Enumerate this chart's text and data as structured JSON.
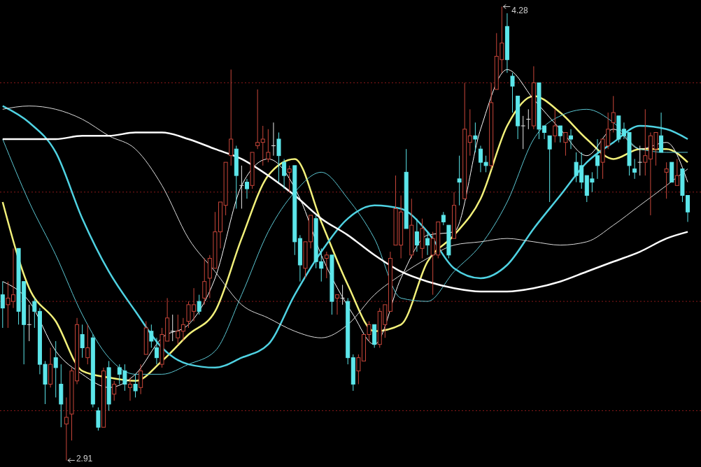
{
  "chart_data": {
    "type": "candlestick",
    "categories": [
      null,
      null,
      null,
      null,
      null,
      null,
      null,
      null,
      null,
      null,
      null,
      null,
      null,
      null,
      null,
      null,
      null,
      null,
      null,
      null,
      null,
      null,
      null,
      null,
      null,
      null,
      null,
      null,
      null,
      null,
      null,
      null,
      null,
      null,
      null,
      null,
      null,
      null,
      null,
      null,
      null,
      null,
      null,
      null,
      null,
      null,
      null,
      null,
      null,
      null,
      null,
      null,
      null,
      null,
      null,
      null,
      null,
      null,
      null,
      null,
      null,
      null,
      null,
      null,
      null,
      null,
      null,
      null,
      null,
      null,
      null,
      null,
      null,
      null,
      null,
      null,
      null,
      null,
      null,
      null,
      null,
      null,
      null,
      null,
      null,
      null,
      null,
      null,
      null,
      null,
      null,
      null,
      null,
      null,
      null,
      null,
      null,
      null,
      null,
      null,
      null,
      null,
      null,
      null,
      null,
      null,
      null,
      null,
      null,
      null,
      null,
      null,
      null,
      null,
      null,
      null,
      null,
      null,
      null,
      null,
      null,
      null,
      null,
      null,
      null,
      null,
      null,
      null,
      null,
      null
    ],
    "ohlc": [
      [
        3.41,
        3.45,
        3.31,
        3.37
      ],
      [
        3.38,
        3.45,
        3.31,
        3.4
      ],
      [
        3.39,
        3.55,
        3.37,
        3.41
      ],
      [
        3.55,
        3.55,
        3.32,
        3.36
      ],
      [
        3.45,
        3.45,
        3.2,
        3.32
      ],
      [
        3.32,
        3.38,
        3.27,
        3.32
      ],
      [
        3.39,
        3.4,
        3.31,
        3.36
      ],
      [
        3.36,
        3.37,
        3.17,
        3.2
      ],
      [
        3.2,
        3.21,
        3.08,
        3.14
      ],
      [
        3.14,
        3.25,
        3.13,
        3.2
      ],
      [
        3.22,
        3.27,
        3.1,
        3.19
      ],
      [
        3.14,
        3.2,
        3.01,
        3.08
      ],
      [
        3.02,
        3.1,
        2.91,
        3.04
      ],
      [
        3.05,
        3.19,
        2.97,
        3.18
      ],
      [
        3.15,
        3.34,
        3.14,
        3.32
      ],
      [
        3.29,
        3.32,
        3.22,
        3.25
      ],
      [
        3.22,
        3.32,
        3.2,
        3.25
      ],
      [
        3.28,
        3.29,
        3.07,
        3.08
      ],
      [
        3.06,
        3.07,
        3.0,
        3.01
      ],
      [
        3.01,
        3.19,
        3.01,
        3.18
      ],
      [
        3.19,
        3.21,
        3.06,
        3.08
      ],
      [
        3.11,
        3.15,
        3.09,
        3.14
      ],
      [
        3.19,
        3.2,
        3.14,
        3.17
      ],
      [
        3.18,
        3.2,
        3.12,
        3.14
      ],
      [
        3.13,
        3.16,
        3.09,
        3.14
      ],
      [
        3.14,
        3.17,
        3.1,
        3.12
      ],
      [
        3.13,
        3.2,
        3.11,
        3.18
      ],
      [
        3.23,
        3.33,
        3.23,
        3.31
      ],
      [
        3.3,
        3.32,
        3.25,
        3.27
      ],
      [
        3.25,
        3.28,
        3.2,
        3.22
      ],
      [
        3.2,
        3.31,
        3.19,
        3.29
      ],
      [
        3.27,
        3.4,
        3.27,
        3.34
      ],
      [
        3.3,
        3.35,
        3.27,
        3.3
      ],
      [
        3.28,
        3.35,
        3.26,
        3.3
      ],
      [
        3.3,
        3.34,
        3.27,
        3.32
      ],
      [
        3.33,
        3.39,
        3.31,
        3.38
      ],
      [
        3.36,
        3.43,
        3.33,
        3.38
      ],
      [
        3.39,
        3.41,
        3.35,
        3.36
      ],
      [
        3.4,
        3.52,
        3.38,
        3.45
      ],
      [
        3.46,
        3.53,
        3.4,
        3.52
      ],
      [
        3.49,
        3.66,
        3.49,
        3.6
      ],
      [
        3.6,
        3.69,
        3.55,
        3.69
      ],
      [
        3.68,
        3.81,
        3.65,
        3.81
      ],
      [
        3.83,
        4.09,
        3.8,
        3.88
      ],
      [
        3.85,
        3.86,
        3.67,
        3.77
      ],
      [
        3.74,
        3.8,
        3.67,
        3.74
      ],
      [
        3.75,
        3.76,
        3.7,
        3.73
      ],
      [
        3.74,
        3.84,
        3.73,
        3.84
      ],
      [
        3.86,
        4.03,
        3.85,
        3.87
      ],
      [
        3.87,
        3.92,
        3.8,
        3.88
      ],
      [
        3.82,
        3.91,
        3.81,
        3.84
      ],
      [
        3.86,
        3.93,
        3.83,
        3.86
      ],
      [
        3.88,
        3.9,
        3.75,
        3.83
      ],
      [
        3.81,
        3.82,
        3.73,
        3.77
      ],
      [
        3.78,
        3.8,
        3.72,
        3.79
      ],
      [
        3.8,
        3.8,
        3.53,
        3.57
      ],
      [
        3.58,
        3.59,
        3.45,
        3.5
      ],
      [
        3.49,
        3.57,
        3.46,
        3.57
      ],
      [
        3.57,
        3.65,
        3.55,
        3.65
      ],
      [
        3.64,
        3.65,
        3.49,
        3.51
      ],
      [
        3.51,
        3.55,
        3.45,
        3.49
      ],
      [
        3.52,
        3.54,
        3.46,
        3.53
      ],
      [
        3.53,
        3.53,
        3.35,
        3.39
      ],
      [
        3.4,
        3.41,
        3.35,
        3.41
      ],
      [
        3.4,
        3.44,
        3.38,
        3.4
      ],
      [
        3.39,
        3.4,
        3.2,
        3.22
      ],
      [
        3.22,
        3.23,
        3.12,
        3.14
      ],
      [
        3.18,
        3.23,
        3.14,
        3.22
      ],
      [
        3.21,
        3.29,
        3.21,
        3.29
      ],
      [
        3.29,
        3.33,
        3.27,
        3.32
      ],
      [
        3.32,
        3.32,
        3.25,
        3.26
      ],
      [
        3.26,
        3.37,
        3.25,
        3.36
      ],
      [
        3.32,
        3.38,
        3.28,
        3.38
      ],
      [
        3.36,
        3.54,
        3.36,
        3.52
      ],
      [
        3.56,
        3.77,
        3.56,
        3.67
      ],
      [
        3.56,
        3.71,
        3.52,
        3.66
      ],
      [
        3.78,
        3.85,
        3.61,
        3.61
      ],
      [
        3.53,
        3.7,
        3.52,
        3.62
      ],
      [
        3.6,
        3.64,
        3.54,
        3.56
      ],
      [
        3.55,
        3.64,
        3.52,
        3.61
      ],
      [
        3.58,
        3.6,
        3.53,
        3.56
      ],
      [
        3.53,
        3.6,
        3.41,
        3.58
      ],
      [
        3.53,
        3.63,
        3.52,
        3.63
      ],
      [
        3.65,
        3.66,
        3.62,
        3.63
      ],
      [
        3.62,
        3.62,
        3.52,
        3.53
      ],
      [
        3.58,
        3.72,
        3.58,
        3.68
      ],
      [
        3.76,
        3.83,
        3.68,
        3.75
      ],
      [
        3.7,
        4.05,
        3.7,
        3.91
      ],
      [
        3.87,
        3.97,
        3.83,
        3.89
      ],
      [
        3.89,
        3.93,
        3.84,
        3.88
      ],
      [
        3.85,
        3.86,
        3.78,
        3.81
      ],
      [
        3.81,
        3.83,
        3.78,
        3.8
      ],
      [
        3.8,
        4.05,
        3.79,
        3.99
      ],
      [
        4.03,
        4.2,
        4.03,
        4.13
      ],
      [
        4.12,
        4.28,
        4.08,
        4.17
      ],
      [
        4.22,
        4.26,
        4.08,
        4.12
      ],
      [
        4.07,
        4.08,
        3.96,
        4.04
      ],
      [
        4.01,
        4.01,
        3.88,
        3.92
      ],
      [
        3.92,
        3.95,
        3.85,
        3.92
      ],
      [
        3.94,
        3.97,
        3.91,
        3.94
      ],
      [
        3.92,
        4.1,
        3.91,
        4.05
      ],
      [
        4.05,
        4.05,
        3.88,
        3.91
      ],
      [
        3.92,
        3.92,
        3.88,
        3.9
      ],
      [
        3.89,
        3.89,
        3.69,
        3.85
      ],
      [
        3.89,
        3.97,
        3.87,
        3.92
      ],
      [
        3.92,
        3.92,
        3.87,
        3.89
      ],
      [
        3.87,
        3.9,
        3.83,
        3.9
      ],
      [
        3.89,
        3.91,
        3.85,
        3.88
      ],
      [
        3.81,
        3.84,
        3.75,
        3.77
      ],
      [
        3.8,
        3.84,
        3.73,
        3.75
      ],
      [
        3.77,
        3.77,
        3.69,
        3.71
      ],
      [
        3.76,
        3.78,
        3.72,
        3.75
      ],
      [
        3.83,
        3.88,
        3.76,
        3.8
      ],
      [
        3.81,
        3.88,
        3.76,
        3.88
      ],
      [
        3.86,
        3.96,
        3.85,
        3.91
      ],
      [
        3.93,
        4.01,
        3.9,
        3.96
      ],
      [
        3.95,
        3.95,
        3.87,
        3.88
      ],
      [
        3.91,
        3.93,
        3.88,
        3.89
      ],
      [
        3.9,
        3.9,
        3.77,
        3.8
      ],
      [
        3.79,
        3.82,
        3.76,
        3.78
      ],
      [
        3.81,
        3.86,
        3.77,
        3.81
      ],
      [
        3.81,
        3.97,
        3.77,
        3.83
      ],
      [
        3.82,
        3.9,
        3.65,
        3.89
      ],
      [
        3.85,
        3.9,
        3.8,
        3.9
      ],
      [
        3.89,
        3.96,
        3.84,
        3.84
      ],
      [
        3.78,
        3.81,
        3.7,
        3.79
      ],
      [
        3.81,
        3.81,
        3.75,
        3.75
      ],
      [
        3.74,
        3.82,
        3.74,
        3.77
      ],
      [
        3.79,
        3.79,
        3.69,
        3.71
      ],
      [
        3.71,
        3.71,
        3.63,
        3.66
      ]
    ],
    "series": [
      {
        "type": "line",
        "color": "#f2f07a",
        "values": [
          3.69,
          null,
          null,
          null,
          null,
          3.43,
          null,
          null,
          null,
          null,
          3.33,
          null,
          null,
          null,
          null,
          3.18,
          null,
          null,
          null,
          null,
          3.16,
          null,
          null,
          null,
          null,
          3.15,
          null,
          null,
          null,
          null,
          3.21,
          null,
          null,
          null,
          null,
          3.29,
          null,
          null,
          null,
          null,
          3.36,
          null,
          null,
          null,
          null,
          3.58,
          null,
          null,
          null,
          null,
          3.77,
          null,
          null,
          null,
          null,
          3.82,
          null,
          null,
          null,
          null,
          3.63,
          null,
          null,
          null,
          null,
          3.44,
          null,
          null,
          null,
          null,
          3.3,
          null,
          null,
          null,
          null,
          3.32,
          null,
          null,
          null,
          null,
          3.51,
          null,
          null,
          null,
          null,
          3.59,
          null,
          null,
          null,
          null,
          3.7,
          null,
          null,
          null,
          null,
          3.92,
          null,
          null,
          null,
          null,
          4.01,
          null,
          null,
          null,
          null,
          3.96,
          null,
          null,
          null,
          null,
          3.88,
          null,
          null,
          null,
          null,
          3.82,
          null,
          null,
          null,
          null,
          3.85,
          null,
          null,
          null,
          null,
          3.85,
          null,
          null,
          null,
          3.81
        ]
      },
      {
        "type": "line",
        "color": "#ffffff",
        "values": [
          3.45,
          null,
          null,
          null,
          null,
          3.39,
          null,
          null,
          null,
          null,
          3.24,
          null,
          null,
          null,
          null,
          3.17,
          null,
          null,
          null,
          null,
          3.13,
          null,
          null,
          null,
          null,
          3.17,
          null,
          null,
          null,
          null,
          3.28,
          null,
          null,
          null,
          null,
          3.32,
          null,
          null,
          null,
          null,
          3.46,
          null,
          null,
          null,
          null,
          3.74,
          null,
          null,
          null,
          null,
          3.82,
          null,
          null,
          null,
          null,
          null,
          3.7,
          null,
          null,
          null,
          3.53,
          null,
          null,
          null,
          null,
          null,
          3.35,
          null,
          null,
          null,
          3.26,
          null,
          null,
          null,
          null,
          3.46,
          null,
          null,
          null,
          null,
          3.59,
          null,
          null,
          null,
          null,
          3.6,
          null,
          null,
          null,
          null,
          3.91,
          null,
          null,
          null,
          null,
          4.09,
          null,
          null,
          null,
          null,
          4.0,
          null,
          null,
          null,
          null,
          3.91,
          null,
          null,
          null,
          null,
          3.83,
          null,
          null,
          null,
          null,
          3.91,
          null,
          null,
          null,
          null,
          3.85,
          null,
          null,
          null,
          null,
          3.87,
          null,
          null,
          null,
          3.75
        ]
      },
      {
        "type": "line",
        "color": "#5cc8d4",
        "values": [
          3.88,
          null,
          null,
          null,
          null,
          3.69,
          null,
          null,
          null,
          null,
          3.53,
          null,
          null,
          null,
          null,
          3.35,
          null,
          null,
          null,
          null,
          3.22,
          null,
          null,
          null,
          null,
          3.17,
          null,
          null,
          null,
          null,
          3.17,
          null,
          null,
          null,
          null,
          3.2,
          null,
          null,
          null,
          null,
          3.24,
          null,
          null,
          null,
          null,
          3.41,
          null,
          null,
          null,
          null,
          3.6,
          null,
          null,
          null,
          null,
          3.72,
          null,
          null,
          null,
          null,
          3.78,
          null,
          null,
          null,
          null,
          3.7,
          null,
          null,
          null,
          null,
          3.58,
          null,
          null,
          null,
          null,
          3.4,
          null,
          null,
          null,
          null,
          3.39,
          null,
          null,
          null,
          null,
          3.48,
          null,
          null,
          null,
          null,
          3.56,
          null,
          null,
          null,
          null,
          3.69,
          null,
          null,
          null,
          null,
          3.88,
          null,
          null,
          null,
          null,
          3.95,
          null,
          null,
          null,
          null,
          3.97,
          null,
          null,
          null,
          null,
          3.93,
          null,
          null,
          null,
          null,
          3.85,
          null,
          null,
          null,
          null,
          3.84,
          null,
          null,
          null,
          3.84
        ]
      },
      {
        "type": "line",
        "color": "#4fd2e2",
        "values": [
          3.98,
          null,
          null,
          null,
          null,
          3.93,
          null,
          null,
          null,
          null,
          3.84,
          null,
          null,
          null,
          null,
          3.64,
          null,
          null,
          null,
          null,
          3.48,
          null,
          null,
          null,
          null,
          3.36,
          null,
          null,
          null,
          null,
          3.25,
          null,
          null,
          null,
          null,
          3.2,
          null,
          null,
          null,
          null,
          3.19,
          null,
          null,
          null,
          null,
          3.22,
          null,
          null,
          null,
          null,
          3.26,
          null,
          null,
          null,
          null,
          3.41,
          null,
          null,
          null,
          null,
          3.54,
          null,
          null,
          null,
          null,
          3.64,
          null,
          null,
          null,
          null,
          3.68,
          null,
          null,
          null,
          null,
          3.67,
          null,
          null,
          null,
          null,
          3.6,
          null,
          null,
          null,
          null,
          3.49,
          null,
          null,
          null,
          null,
          3.46,
          null,
          null,
          null,
          null,
          3.5,
          null,
          null,
          null,
          null,
          3.61,
          null,
          null,
          null,
          null,
          3.71,
          null,
          null,
          null,
          null,
          3.81,
          null,
          null,
          null,
          null,
          3.87,
          null,
          null,
          null,
          null,
          3.92,
          null,
          null,
          null,
          null,
          3.91,
          null,
          null,
          null,
          3.88
        ]
      },
      {
        "type": "line",
        "color": "#dcdcdc",
        "values": [
          3.97,
          null,
          null,
          null,
          null,
          3.98,
          null,
          null,
          null,
          null,
          3.97,
          null,
          null,
          null,
          null,
          3.94,
          null,
          null,
          null,
          null,
          3.89,
          null,
          null,
          null,
          null,
          3.85,
          null,
          null,
          null,
          null,
          3.74,
          null,
          null,
          null,
          null,
          3.58,
          null,
          null,
          null,
          null,
          3.48,
          null,
          null,
          null,
          null,
          3.38,
          null,
          null,
          null,
          null,
          3.34,
          null,
          null,
          null,
          null,
          3.3,
          null,
          null,
          null,
          null,
          3.28,
          null,
          null,
          null,
          null,
          3.32,
          null,
          null,
          null,
          null,
          3.41,
          null,
          null,
          null,
          null,
          3.47,
          null,
          null,
          null,
          null,
          3.52,
          null,
          null,
          null,
          null,
          3.56,
          null,
          null,
          null,
          null,
          3.57,
          null,
          null,
          null,
          null,
          3.58,
          null,
          null,
          null,
          null,
          3.57,
          null,
          null,
          null,
          null,
          3.56,
          null,
          null,
          null,
          null,
          3.57,
          null,
          null,
          null,
          null,
          3.62,
          null,
          null,
          null,
          null,
          3.68,
          null,
          null,
          null,
          null,
          3.74,
          null,
          null,
          null,
          3.79
        ]
      },
      {
        "type": "line",
        "color": "#ffffff",
        "values": [
          3.88,
          null,
          null,
          null,
          null,
          3.88,
          null,
          null,
          null,
          null,
          3.88,
          null,
          null,
          null,
          null,
          3.89,
          null,
          null,
          null,
          null,
          3.89,
          null,
          null,
          null,
          null,
          3.9,
          null,
          null,
          null,
          null,
          3.9,
          null,
          null,
          null,
          null,
          3.88,
          null,
          null,
          null,
          null,
          3.85,
          null,
          null,
          null,
          null,
          3.82,
          null,
          null,
          null,
          null,
          3.77,
          null,
          null,
          null,
          null,
          3.71,
          null,
          null,
          null,
          null,
          3.64,
          null,
          null,
          null,
          null,
          3.59,
          null,
          null,
          null,
          null,
          3.53,
          null,
          null,
          null,
          null,
          3.48,
          null,
          null,
          null,
          null,
          3.45,
          null,
          null,
          null,
          null,
          3.43,
          null,
          null,
          null,
          null,
          3.42,
          null,
          null,
          null,
          null,
          3.42,
          null,
          null,
          null,
          null,
          3.43,
          null,
          null,
          null,
          null,
          3.45,
          null,
          null,
          null,
          null,
          3.48,
          null,
          null,
          null,
          null,
          3.51,
          null,
          null,
          null,
          null,
          3.54,
          null,
          null,
          null,
          null,
          3.58,
          null,
          null,
          null,
          3.6
        ]
      }
    ],
    "annotations": [
      "4.28",
      "2.91"
    ],
    "ylim": [
      2.89,
      4.3
    ],
    "yticks": [
      {
        "value": 4.05,
        "label": null
      },
      {
        "value": 3.72,
        "label": null
      },
      {
        "value": 3.39,
        "label": null
      },
      {
        "value": 3.06,
        "label": null
      }
    ],
    "grid": "y"
  }
}
